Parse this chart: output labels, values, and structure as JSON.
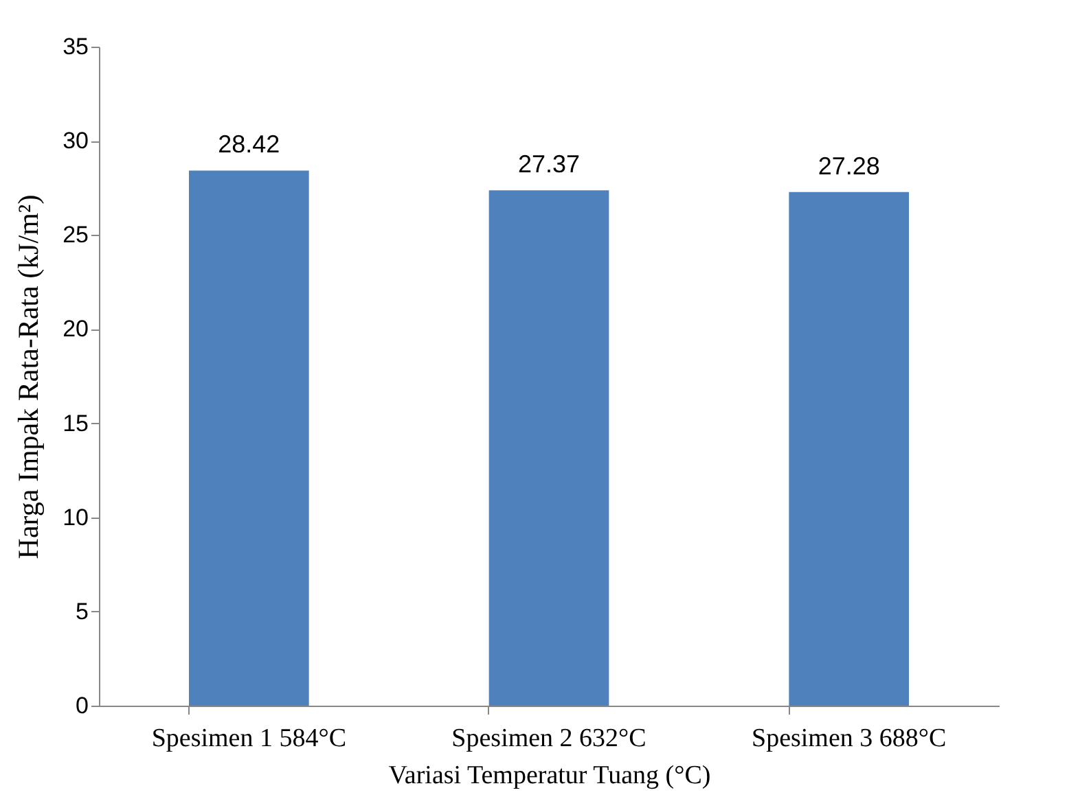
{
  "chart_data": {
    "type": "bar",
    "xlabel": "Variasi Temperatur Tuang  (°C)",
    "ylabel": "Harga Impak Rata-Rata (kJ/m²)",
    "categories": [
      "Spesimen 1 584°C",
      "Spesimen 2 632°C",
      "Spesimen 3 688°C"
    ],
    "values": [
      28.42,
      27.37,
      27.28
    ],
    "color": "#4f81bd",
    "ylim": [
      0,
      35
    ],
    "yticks": [
      0,
      5,
      10,
      15,
      20,
      25,
      30,
      35
    ],
    "data_labels": true
  }
}
